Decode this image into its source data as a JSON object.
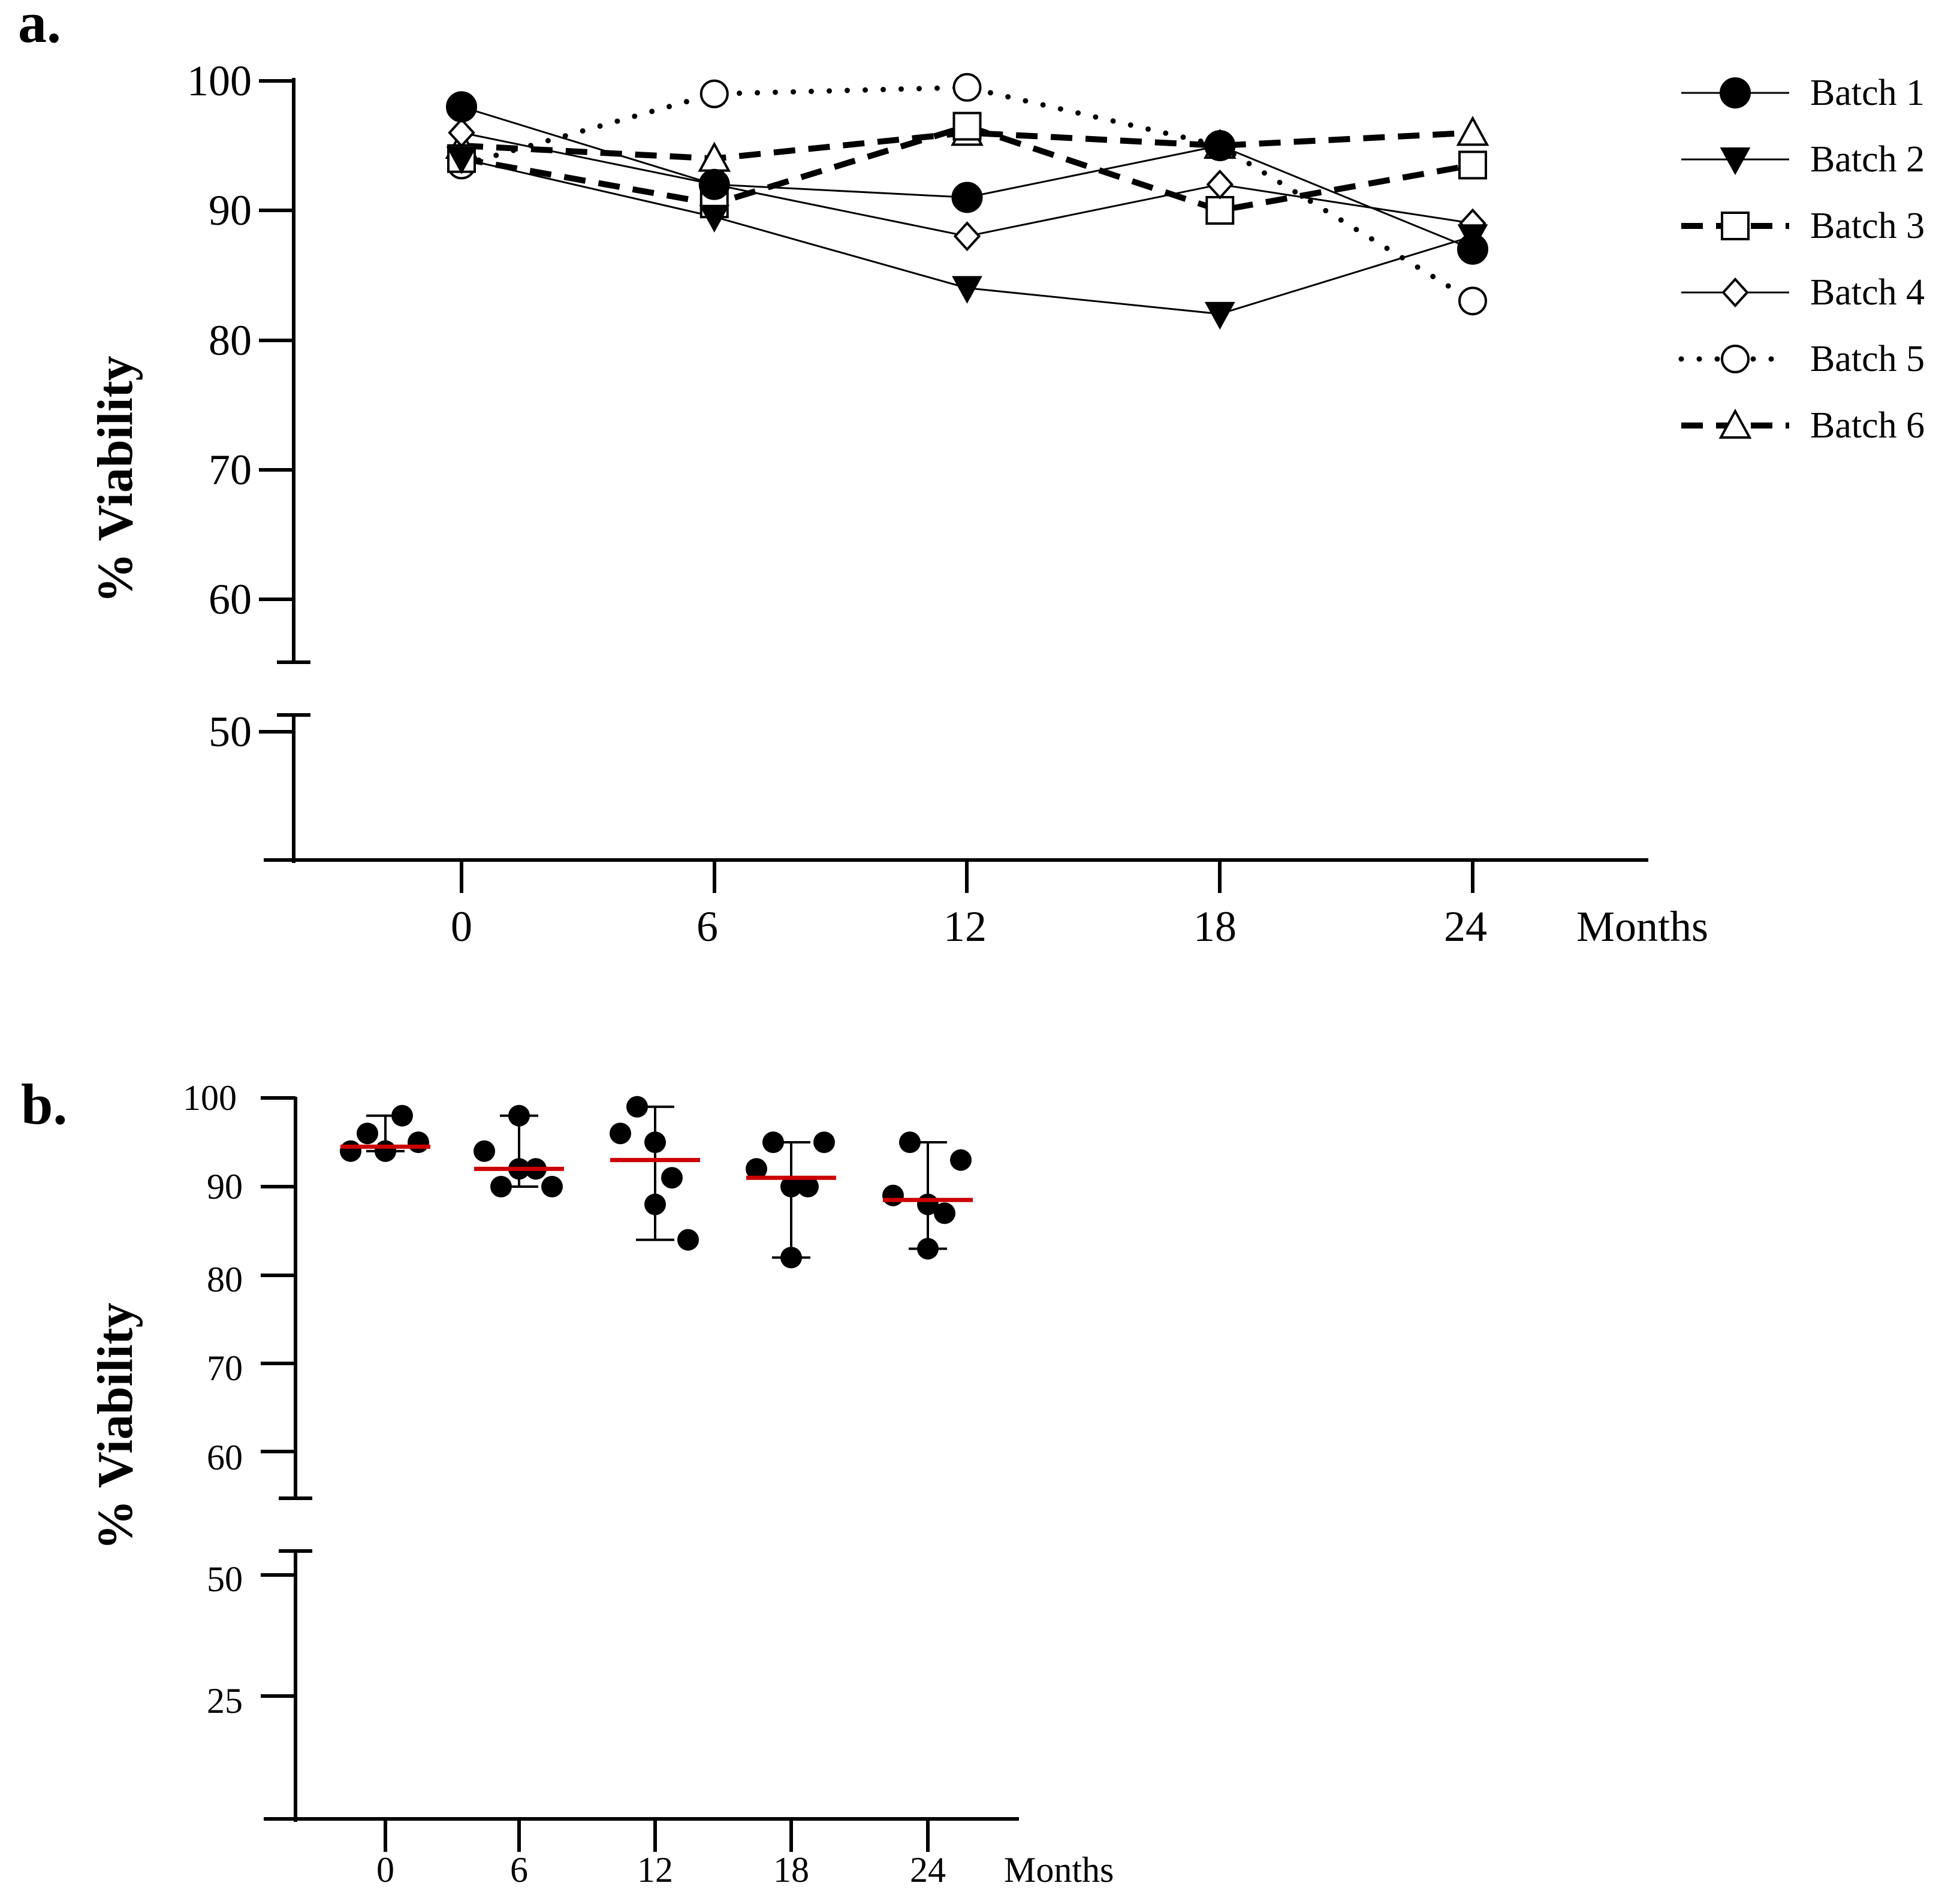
{
  "chart_data": [
    {
      "panel_label": "a.",
      "type": "line",
      "ylabel": "% Viability",
      "xlabel": "Months",
      "x": [
        0,
        6,
        12,
        18,
        24
      ],
      "x_tick_labels": [
        "0",
        "6",
        "12",
        "18",
        "24"
      ],
      "y_tick_labels": [
        "100",
        "90",
        "80",
        "70",
        "60",
        "50"
      ],
      "ylim": [
        40,
        100
      ],
      "axis_break": [
        55,
        51
      ],
      "legend_position": "top-right",
      "series": [
        {
          "name": "Batch 1",
          "marker": "circle-filled",
          "line": "solid",
          "values": [
            98,
            92,
            91,
            95,
            87
          ]
        },
        {
          "name": "Batch 2",
          "marker": "triangle-down-filled",
          "line": "solid",
          "values": [
            94,
            89.5,
            84,
            82,
            88
          ]
        },
        {
          "name": "Batch 3",
          "marker": "square-open",
          "line": "dashed",
          "values": [
            94,
            90.5,
            96.5,
            90,
            93.5
          ]
        },
        {
          "name": "Batch 4",
          "marker": "diamond-open",
          "line": "solid",
          "values": [
            96,
            92,
            88,
            92,
            89
          ]
        },
        {
          "name": "Batch 5",
          "marker": "circle-open",
          "line": "dotted",
          "values": [
            93.5,
            99,
            99.5,
            95,
            83
          ]
        },
        {
          "name": "Batch 6",
          "marker": "triangle-up-open",
          "line": "dashed",
          "values": [
            95,
            94,
            96,
            95,
            96
          ]
        }
      ]
    },
    {
      "panel_label": "b.",
      "type": "scatter",
      "ylabel": "% Viability",
      "xlabel": "Months",
      "x_tick_labels": [
        "0",
        "6",
        "12",
        "18",
        "24"
      ],
      "y_tick_labels": [
        "100",
        "90",
        "80",
        "70",
        "60",
        "50",
        "25"
      ],
      "ylim": [
        0,
        100
      ],
      "axis_break": [
        55,
        50
      ],
      "median_color": "#cc0000",
      "groups": [
        {
          "x": 0,
          "values": [
            94,
            96,
            98,
            94,
            95,
            94
          ],
          "median": 94.5,
          "range": [
            94,
            98
          ]
        },
        {
          "x": 6,
          "values": [
            94,
            90,
            92,
            98,
            90,
            92
          ],
          "median": 92,
          "range": [
            90,
            98
          ]
        },
        {
          "x": 12,
          "values": [
            96,
            99,
            91,
            88,
            84,
            95
          ],
          "median": 93,
          "range": [
            84,
            99
          ]
        },
        {
          "x": 18,
          "values": [
            92,
            95,
            90,
            82,
            95,
            90
          ],
          "median": 91,
          "range": [
            82,
            95
          ]
        },
        {
          "x": 24,
          "values": [
            89,
            95,
            87,
            83,
            93,
            88
          ],
          "median": 88.5,
          "range": [
            83,
            95
          ]
        }
      ]
    }
  ]
}
